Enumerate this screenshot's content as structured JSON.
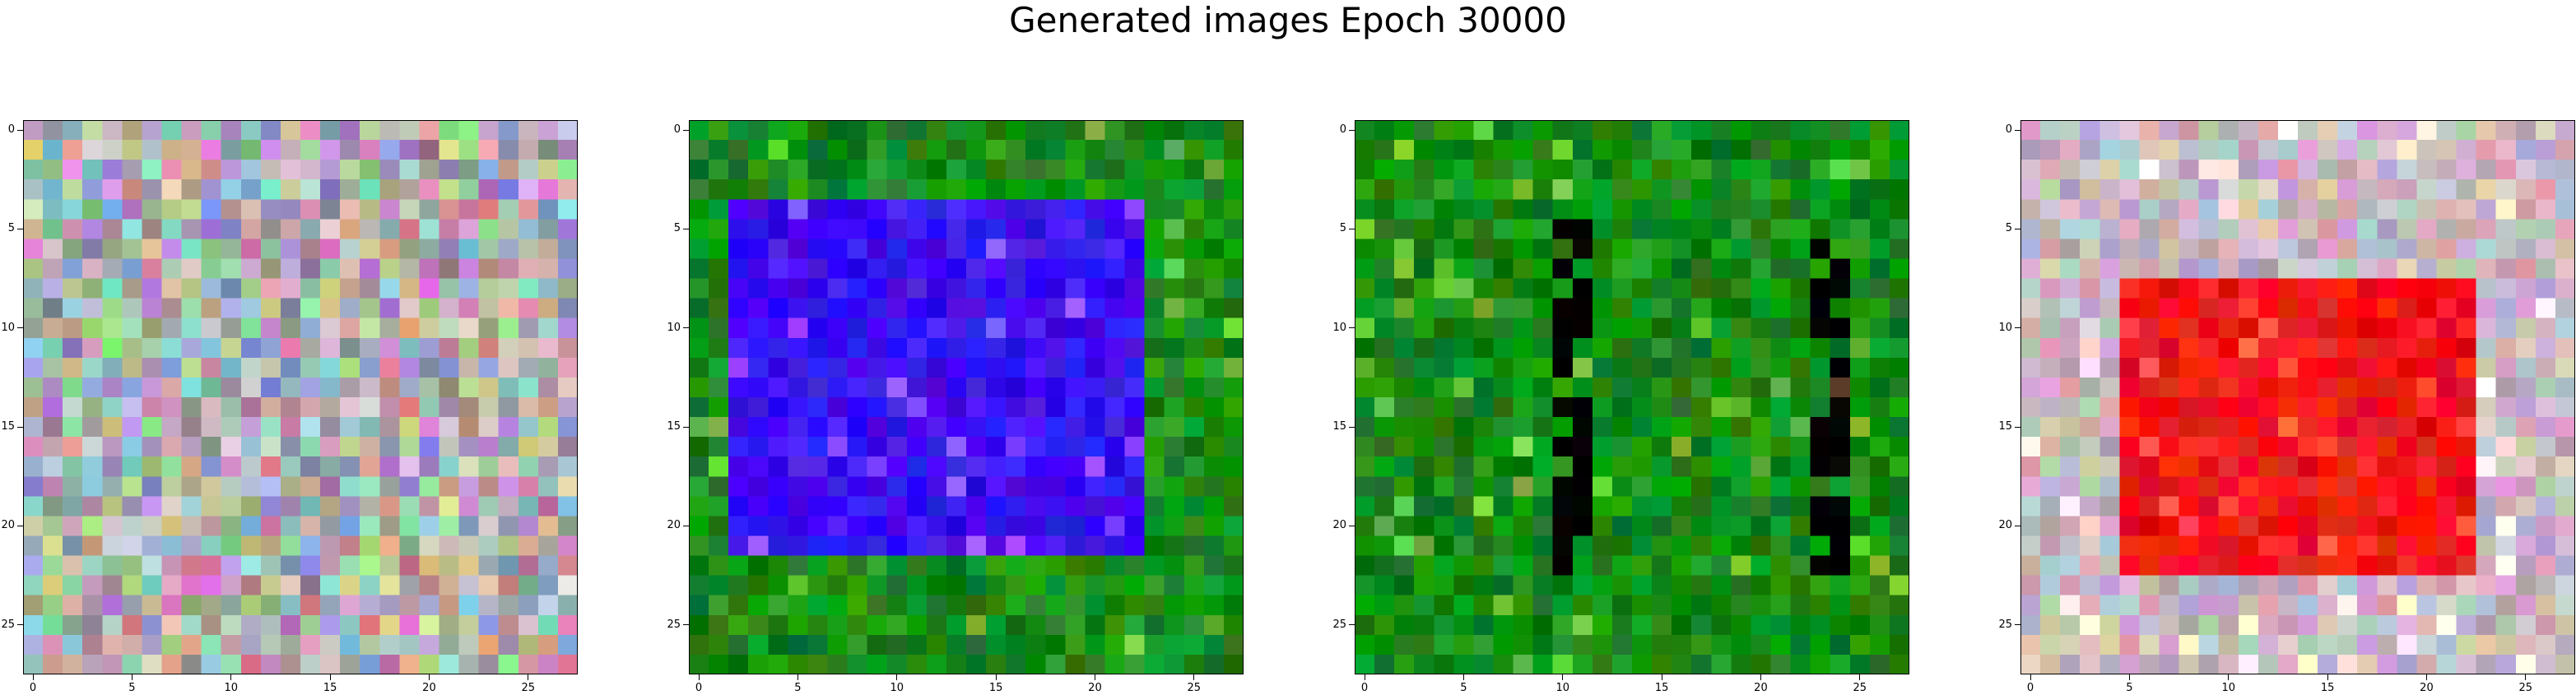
{
  "figure": {
    "title": "Generated images Epoch 30000",
    "background": "#ffffff"
  },
  "chart_data": [
    {
      "type": "heatmap",
      "grid_size": 28,
      "xticks": [
        0,
        5,
        10,
        15,
        20,
        25
      ],
      "yticks": [
        0,
        5,
        10,
        15,
        20,
        25
      ],
      "xlim": [
        -0.5,
        27.5
      ],
      "ylim": [
        27.5,
        -0.5
      ],
      "style": "noise",
      "colors": {
        "background": "#a9b8a6"
      }
    },
    {
      "type": "heatmap",
      "grid_size": 28,
      "xticks": [
        0,
        5,
        10,
        15,
        20,
        25
      ],
      "yticks": [
        0,
        5,
        10,
        15,
        20,
        25
      ],
      "xlim": [
        -0.5,
        27.5
      ],
      "ylim": [
        27.5,
        -0.5
      ],
      "style": "square",
      "colors": {
        "background": "#1a8a1a",
        "shape": "#3a10f0"
      },
      "shape_rows": [
        4,
        21
      ],
      "shape_cols": [
        2,
        22
      ]
    },
    {
      "type": "heatmap",
      "grid_size": 28,
      "xticks": [
        0,
        5,
        10,
        15,
        20,
        25
      ],
      "yticks": [
        0,
        5,
        10,
        15,
        20,
        25
      ],
      "xlim": [
        -0.5,
        27.5
      ],
      "ylim": [
        27.5,
        -0.5
      ],
      "style": "outline",
      "colors": {
        "background": "#148a14",
        "shape": "#000000"
      },
      "shape_rows": [
        5,
        22
      ],
      "shape_cols": [
        10,
        24
      ]
    },
    {
      "type": "heatmap",
      "grid_size": 28,
      "xticks": [
        0,
        5,
        10,
        15,
        20,
        25
      ],
      "yticks": [
        0,
        5,
        10,
        15,
        20,
        25
      ],
      "xlim": [
        -0.5,
        27.5
      ],
      "ylim": [
        27.5,
        -0.5
      ],
      "style": "square",
      "colors": {
        "background": "#c8b8c0",
        "shape": "#f01818"
      },
      "shape_rows": [
        8,
        22
      ],
      "shape_cols": [
        5,
        22
      ]
    }
  ]
}
